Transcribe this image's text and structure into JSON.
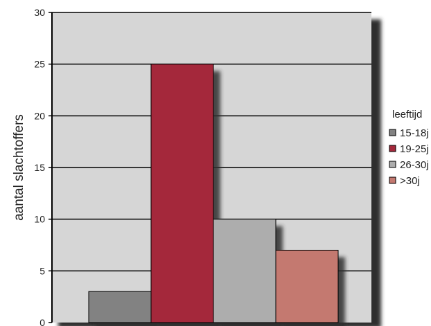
{
  "chart_data": {
    "type": "bar",
    "ylabel": "aantal slachtoffers",
    "ylim": [
      0,
      30
    ],
    "yticks": [
      0,
      5,
      10,
      15,
      20,
      25,
      30
    ],
    "grid": true,
    "legend_title": "leeftijd",
    "legend_position": "right",
    "series": [
      {
        "name": "15-18j",
        "value": 3,
        "color": "#828282"
      },
      {
        "name": "19-25j",
        "value": 25,
        "color": "#a4283b"
      },
      {
        "name": "26-30j",
        "value": 10,
        "color": "#adadad"
      },
      {
        "name": ">30j",
        "value": 7,
        "color": "#c47970"
      }
    ],
    "plot_background": "#d6d6d6"
  }
}
